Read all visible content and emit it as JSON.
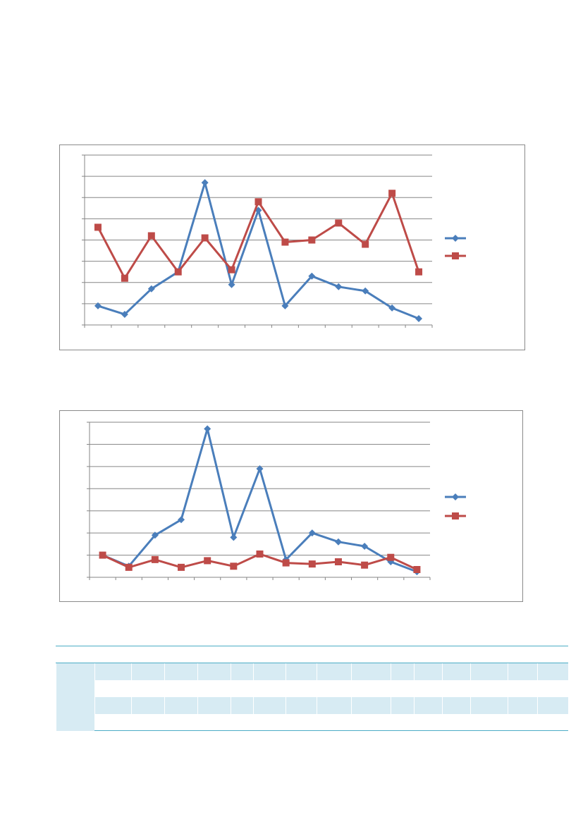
{
  "chart_data": [
    {
      "type": "line",
      "title": "",
      "xlabel": "",
      "ylabel": "",
      "ylim": [
        0,
        8
      ],
      "grid": true,
      "legend": "right",
      "categories": [
        "",
        "",
        "",
        "",
        "",
        "",
        "",
        "",
        "",
        "",
        "",
        "",
        ""
      ],
      "series": [
        {
          "color": "#4a7ebb",
          "marker": "diamond",
          "values": [
            0.9,
            0.5,
            1.7,
            2.5,
            6.7,
            1.9,
            5.4,
            0.9,
            2.3,
            1.8,
            1.6,
            0.8,
            0.3
          ]
        },
        {
          "color": "#be4b48",
          "marker": "square",
          "values": [
            4.6,
            2.2,
            4.2,
            2.5,
            4.1,
            2.6,
            5.8,
            3.9,
            4.0,
            4.8,
            3.8,
            6.2,
            2.5
          ]
        }
      ]
    },
    {
      "type": "line",
      "title": "",
      "xlabel": "",
      "ylabel": "",
      "ylim": [
        0,
        7
      ],
      "grid": true,
      "legend": "right",
      "categories": [
        "",
        "",
        "",
        "",
        "",
        "",
        "",
        "",
        "",
        "",
        "",
        "",
        ""
      ],
      "series": [
        {
          "color": "#4a7ebb",
          "marker": "diamond",
          "values": [
            1.0,
            0.5,
            1.9,
            2.6,
            6.7,
            1.8,
            4.9,
            0.8,
            2.0,
            1.6,
            1.4,
            0.7,
            0.25
          ]
        },
        {
          "color": "#be4b48",
          "marker": "square",
          "values": [
            1.0,
            0.45,
            0.8,
            0.45,
            0.75,
            0.5,
            1.05,
            0.65,
            0.6,
            0.7,
            0.55,
            0.9,
            0.35
          ]
        }
      ]
    }
  ],
  "table": {
    "header_color": "#4bacc6",
    "band_color": "#d7ebf3",
    "column_count": 16,
    "rows": 4
  }
}
